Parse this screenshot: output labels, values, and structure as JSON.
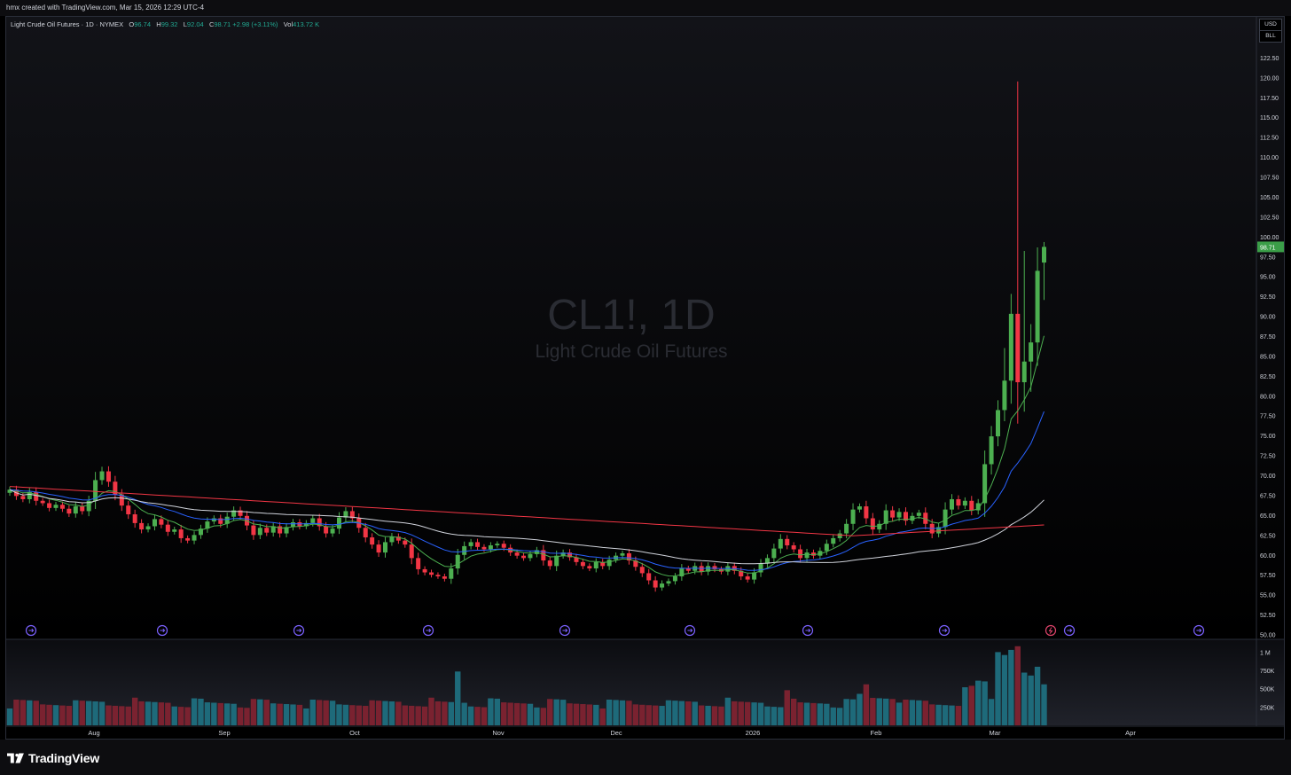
{
  "credit": "hmx created with TradingView.com, Mar 15, 2026 12:29 UTC-4",
  "legend": {
    "name": "Light Crude Oil Futures · 1D · NYMEX",
    "o_label": "O",
    "o": "96.74",
    "h_label": "H",
    "h": "99.32",
    "l_label": "L",
    "l": "92.04",
    "c_label": "C",
    "c": "98.71",
    "change": "+2.98 (+3.11%)",
    "vol_label": "Vol",
    "vol": "413.72 K"
  },
  "currency": {
    "top": "USD",
    "bottom": "BLL"
  },
  "watermark": {
    "symbol": "CL1!, 1D",
    "name": "Light Crude Oil Futures"
  },
  "brand": "TradingView",
  "colors": {
    "up": "#4caf50",
    "down": "#f23645",
    "vol_up": "#1e6a7a",
    "vol_down": "#7a2230",
    "ema_short": "#4caf50",
    "ema_mid": "#2962ff",
    "sma_long": "#d1d4dc",
    "sma_200": "#f23645"
  },
  "chart_data": {
    "type": "candlestick",
    "title": "",
    "price_axis": {
      "ticks": [
        "122.50",
        "120.00",
        "117.50",
        "115.00",
        "112.50",
        "110.00",
        "107.50",
        "105.00",
        "102.50",
        "100.00",
        "97.50",
        "95.00",
        "92.50",
        "90.00",
        "87.50",
        "85.00",
        "82.50",
        "80.00",
        "77.50",
        "75.00",
        "72.50",
        "70.00",
        "67.50",
        "65.00",
        "62.50",
        "60.00",
        "57.50",
        "55.00",
        "52.50",
        "50.00"
      ],
      "range": [
        49.5,
        124.5
      ],
      "last_price_label": "98.71"
    },
    "volume_axis": {
      "ticks": [
        "1 M",
        "750K",
        "500K",
        "250K"
      ],
      "range": [
        0,
        1150000
      ]
    },
    "time_axis": [
      "Aug",
      "Sep",
      "Oct",
      "Nov",
      "Dec",
      "2026",
      "Feb",
      "Mar",
      "Apr"
    ],
    "closes": [
      68.2,
      67.4,
      67.0,
      67.9,
      66.8,
      66.5,
      65.9,
      66.3,
      65.8,
      65.2,
      66.1,
      65.5,
      66.8,
      69.4,
      70.5,
      69.2,
      67.6,
      66.2,
      65.1,
      64.0,
      63.2,
      63.6,
      64.5,
      63.8,
      62.9,
      63.2,
      62.1,
      61.8,
      62.5,
      63.3,
      64.2,
      64.6,
      63.9,
      64.8,
      65.6,
      64.9,
      63.7,
      62.5,
      63.4,
      62.8,
      63.6,
      62.7,
      63.5,
      64.1,
      63.6,
      64.0,
      64.6,
      63.6,
      62.7,
      63.3,
      64.7,
      65.5,
      64.6,
      63.4,
      62.2,
      61.3,
      60.3,
      61.6,
      62.3,
      61.8,
      61.3,
      59.6,
      58.2,
      57.8,
      57.5,
      57.3,
      57.0,
      58.3,
      60.0,
      61.1,
      61.6,
      61.0,
      60.7,
      61.2,
      61.4,
      60.9,
      60.3,
      59.9,
      59.6,
      60.1,
      60.6,
      59.3,
      58.6,
      59.9,
      60.3,
      59.7,
      59.1,
      58.6,
      58.3,
      59.1,
      58.6,
      59.4,
      59.9,
      60.2,
      59.3,
      58.5,
      57.7,
      56.8,
      55.9,
      56.4,
      56.7,
      57.3,
      58.3,
      58.0,
      58.6,
      57.9,
      58.6,
      58.2,
      57.9,
      58.6,
      58.0,
      57.3,
      56.9,
      57.8,
      58.9,
      59.6,
      60.8,
      62.0,
      61.2,
      60.7,
      59.6,
      60.3,
      59.9,
      60.5,
      61.4,
      62.1,
      62.7,
      63.9,
      65.7,
      66.1,
      64.6,
      63.2,
      63.9,
      65.6,
      64.7,
      65.4,
      64.3,
      64.9,
      65.3,
      63.9,
      62.7,
      63.5,
      65.7,
      67.0,
      66.2,
      66.8,
      65.6,
      66.5,
      71.4,
      74.9,
      78.2,
      81.9,
      90.3,
      81.7,
      84.3,
      86.7,
      95.7,
      98.71
    ]
  }
}
